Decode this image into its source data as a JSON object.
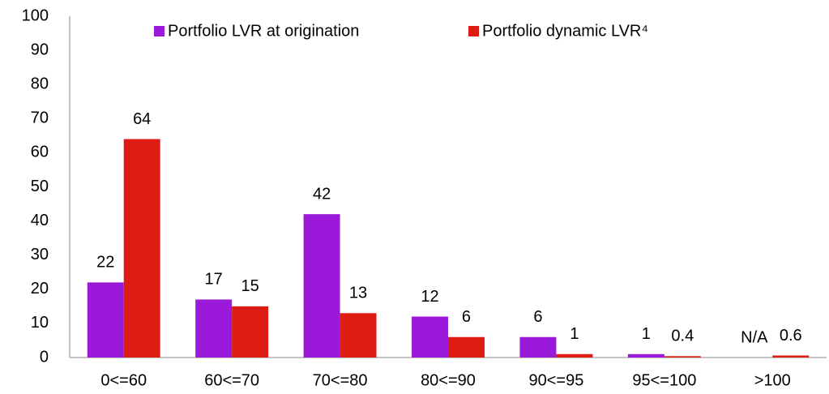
{
  "chart_data": {
    "type": "bar",
    "categories": [
      "0<=60",
      "60<=70",
      "70<=80",
      "80<=90",
      "90<=95",
      "95<=100",
      ">100"
    ],
    "series": [
      {
        "name": "Portfolio LVR at origination",
        "color": "#9b19d9",
        "values": [
          22,
          17,
          42,
          12,
          6,
          1,
          null
        ],
        "value_labels": [
          "22",
          "17",
          "42",
          "12",
          "6",
          "1",
          "N/A"
        ]
      },
      {
        "name": "Portfolio dynamic LVR⁴",
        "color": "#dd1c14",
        "values": [
          64,
          15,
          13,
          6,
          1,
          0.4,
          0.6
        ]
      }
    ],
    "ylim": [
      0,
      100
    ],
    "yticks": [
      0,
      10,
      20,
      30,
      40,
      50,
      60,
      70,
      80,
      90,
      100
    ],
    "grid": false,
    "legend": "top"
  }
}
